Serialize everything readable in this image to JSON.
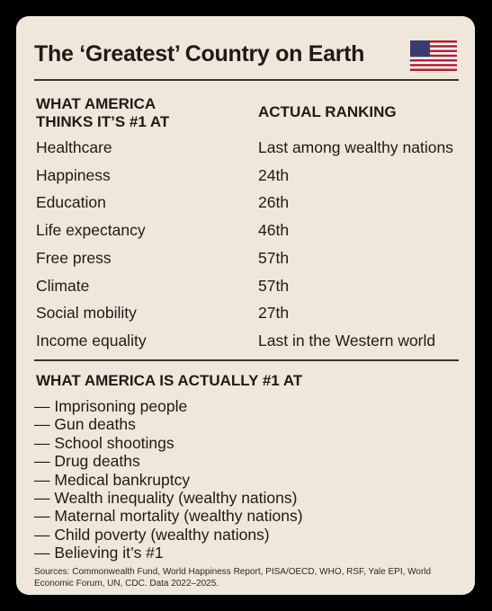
{
  "title": "The ‘Greatest’ Country on Earth",
  "table": {
    "headers": [
      "WHAT AMERICA\nTHINKS IT’S #1 AT",
      "ACTUAL RANKING"
    ],
    "rows": [
      [
        "Healthcare",
        "Last among wealthy nations"
      ],
      [
        "Happiness",
        "24th"
      ],
      [
        "Education",
        "26th"
      ],
      [
        "Life expectancy",
        "46th"
      ],
      [
        "Free press",
        "57th"
      ],
      [
        "Climate",
        "57th"
      ],
      [
        "Social mobility",
        "27th"
      ],
      [
        "Income equality",
        "Last in the Western world"
      ]
    ]
  },
  "actual": {
    "heading": "WHAT AMERICA IS ACTUALLY #1 AT",
    "items": [
      "— Imprisoning people",
      "— Gun deaths",
      "— School shootings",
      "— Drug deaths",
      "— Medical bankruptcy",
      "— Wealth inequality (wealthy nations)",
      "— Maternal mortality (wealthy nations)",
      "— Child poverty (wealthy nations)",
      "— Believing it’s #1"
    ]
  },
  "sources": "Sources: Commonwealth Fund, World Happiness Report, PISA/OECD, WHO, RSF, Yale EPI, World Economic Forum, UN, CDC. Data 2022–2025."
}
